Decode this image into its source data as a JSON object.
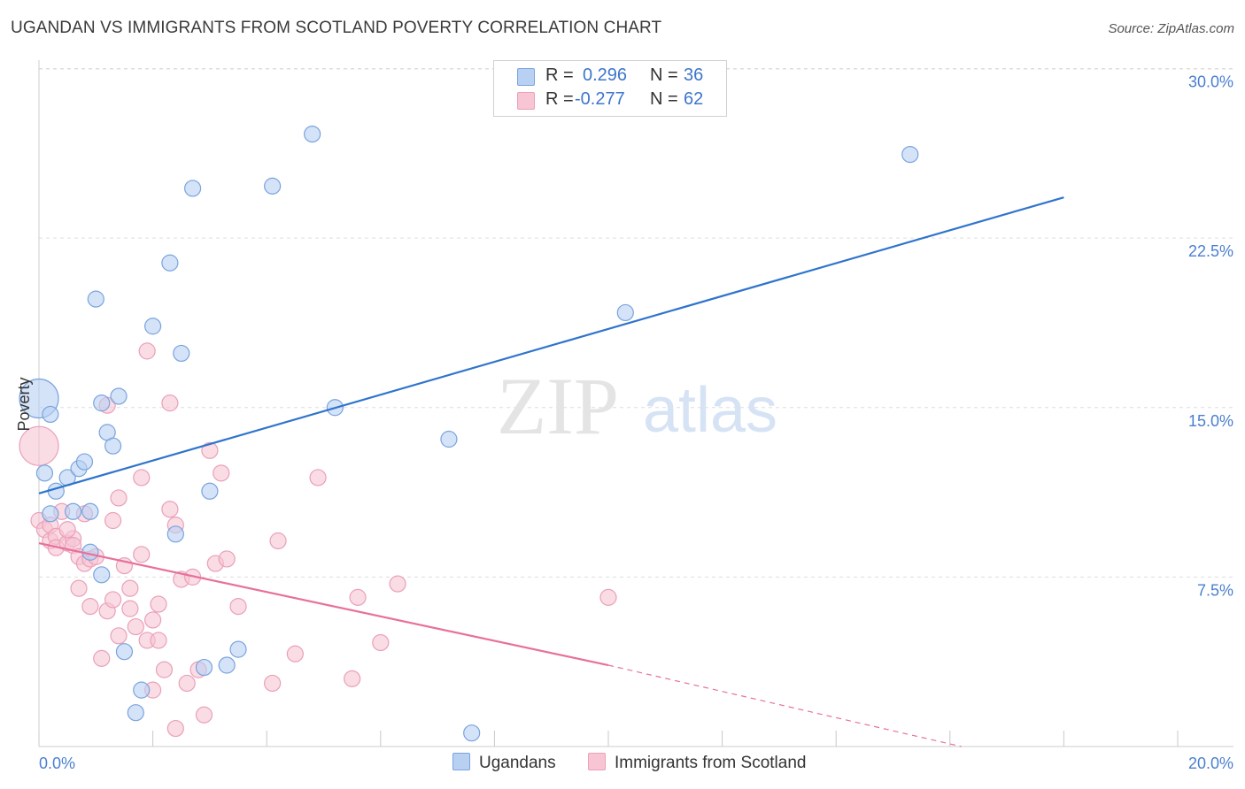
{
  "title": "UGANDAN VS IMMIGRANTS FROM SCOTLAND POVERTY CORRELATION CHART",
  "source": "Source: ZipAtlas.com",
  "watermark": {
    "zip": "ZIP",
    "atlas": "atlas"
  },
  "legend": {
    "rows": [
      {
        "r_label": "R =",
        "r_value": "0.296",
        "n_label": "N =",
        "n_value": "36"
      },
      {
        "r_label": "R =",
        "r_value": "-0.277",
        "n_label": "N =",
        "n_value": "62"
      }
    ]
  },
  "bottom_legend": {
    "series_a": "Ugandans",
    "series_b": "Immigrants from Scotland"
  },
  "colors": {
    "ugandans_fill": "#b8d0f2",
    "ugandans_stroke": "#7aa3de",
    "ugandans_line": "#2f74cc",
    "scotland_fill": "#f7c5d4",
    "scotland_stroke": "#eaa0b8",
    "scotland_line": "#e8709a",
    "grid": "#dddddd",
    "tick_text": "#4a7fd0"
  },
  "chart_data": {
    "type": "scatter",
    "xlabel": "",
    "ylabel": "Poverty",
    "xlim": [
      0,
      20
    ],
    "ylim": [
      0,
      31
    ],
    "x_tick_labels": [
      "0.0%",
      "20.0%"
    ],
    "y_ticks": [
      7.5,
      15.0,
      22.5,
      30.0
    ],
    "y_tick_labels": [
      "7.5%",
      "15.0%",
      "22.5%",
      "30.0%"
    ],
    "grid": true,
    "legend_placement": "top-center",
    "series": [
      {
        "name": "Ugandans",
        "r": 0.296,
        "n": 36,
        "trend": {
          "x": [
            0,
            18.0
          ],
          "y": [
            11.2,
            24.3
          ]
        },
        "points": [
          {
            "x": 0.0,
            "y": 15.4,
            "s": "l"
          },
          {
            "x": 0.1,
            "y": 12.1
          },
          {
            "x": 0.2,
            "y": 14.7
          },
          {
            "x": 0.2,
            "y": 10.3
          },
          {
            "x": 0.3,
            "y": 11.3
          },
          {
            "x": 0.5,
            "y": 11.9
          },
          {
            "x": 0.6,
            "y": 10.4
          },
          {
            "x": 0.7,
            "y": 12.3
          },
          {
            "x": 0.8,
            "y": 12.6
          },
          {
            "x": 0.9,
            "y": 8.6
          },
          {
            "x": 0.9,
            "y": 10.4
          },
          {
            "x": 1.0,
            "y": 19.8
          },
          {
            "x": 1.1,
            "y": 7.6
          },
          {
            "x": 1.1,
            "y": 15.2
          },
          {
            "x": 1.2,
            "y": 13.9
          },
          {
            "x": 1.3,
            "y": 13.3
          },
          {
            "x": 1.4,
            "y": 15.5
          },
          {
            "x": 1.5,
            "y": 4.2
          },
          {
            "x": 1.7,
            "y": 1.5
          },
          {
            "x": 1.8,
            "y": 2.5
          },
          {
            "x": 2.0,
            "y": 18.6
          },
          {
            "x": 2.3,
            "y": 21.4
          },
          {
            "x": 2.4,
            "y": 9.4
          },
          {
            "x": 2.5,
            "y": 17.4
          },
          {
            "x": 2.7,
            "y": 24.7
          },
          {
            "x": 2.9,
            "y": 3.5
          },
          {
            "x": 3.0,
            "y": 11.3
          },
          {
            "x": 3.3,
            "y": 3.6
          },
          {
            "x": 3.5,
            "y": 4.3
          },
          {
            "x": 4.1,
            "y": 24.8
          },
          {
            "x": 4.8,
            "y": 27.1
          },
          {
            "x": 5.2,
            "y": 15.0
          },
          {
            "x": 7.2,
            "y": 13.6
          },
          {
            "x": 7.6,
            "y": 0.6
          },
          {
            "x": 10.3,
            "y": 19.2
          },
          {
            "x": 15.3,
            "y": 26.2
          }
        ]
      },
      {
        "name": "Immigrants from Scotland",
        "r": -0.277,
        "n": 62,
        "trend": {
          "x": [
            0,
            10.0
          ],
          "y": [
            9.0,
            3.6
          ]
        },
        "trend_dashed": {
          "x": [
            10.0,
            16.2
          ],
          "y": [
            3.6,
            0.0
          ]
        },
        "points": [
          {
            "x": 0.0,
            "y": 13.3,
            "s": "l"
          },
          {
            "x": 0.0,
            "y": 10.0
          },
          {
            "x": 0.1,
            "y": 9.6
          },
          {
            "x": 0.2,
            "y": 9.1
          },
          {
            "x": 0.2,
            "y": 9.8
          },
          {
            "x": 0.3,
            "y": 9.3
          },
          {
            "x": 0.3,
            "y": 8.8
          },
          {
            "x": 0.4,
            "y": 10.4
          },
          {
            "x": 0.5,
            "y": 9.0
          },
          {
            "x": 0.6,
            "y": 9.2
          },
          {
            "x": 0.6,
            "y": 8.9
          },
          {
            "x": 0.7,
            "y": 8.4
          },
          {
            "x": 0.7,
            "y": 7.0
          },
          {
            "x": 0.8,
            "y": 10.3
          },
          {
            "x": 0.8,
            "y": 8.1
          },
          {
            "x": 0.9,
            "y": 8.3
          },
          {
            "x": 0.9,
            "y": 6.2
          },
          {
            "x": 1.0,
            "y": 8.4
          },
          {
            "x": 1.1,
            "y": 3.9
          },
          {
            "x": 1.2,
            "y": 15.1
          },
          {
            "x": 1.2,
            "y": 6.0
          },
          {
            "x": 1.3,
            "y": 6.5
          },
          {
            "x": 1.3,
            "y": 10.0
          },
          {
            "x": 1.4,
            "y": 11.0
          },
          {
            "x": 1.4,
            "y": 4.9
          },
          {
            "x": 1.5,
            "y": 8.0
          },
          {
            "x": 1.6,
            "y": 7.0
          },
          {
            "x": 1.6,
            "y": 6.1
          },
          {
            "x": 1.7,
            "y": 5.3
          },
          {
            "x": 1.8,
            "y": 11.9
          },
          {
            "x": 1.8,
            "y": 8.5
          },
          {
            "x": 1.9,
            "y": 17.5
          },
          {
            "x": 1.9,
            "y": 4.7
          },
          {
            "x": 2.0,
            "y": 5.6
          },
          {
            "x": 2.0,
            "y": 2.5
          },
          {
            "x": 2.1,
            "y": 4.7
          },
          {
            "x": 2.1,
            "y": 6.3
          },
          {
            "x": 2.2,
            "y": 3.4
          },
          {
            "x": 2.3,
            "y": 15.2
          },
          {
            "x": 2.3,
            "y": 10.5
          },
          {
            "x": 2.4,
            "y": 9.8
          },
          {
            "x": 2.4,
            "y": 0.8
          },
          {
            "x": 2.5,
            "y": 7.4
          },
          {
            "x": 2.6,
            "y": 2.8
          },
          {
            "x": 2.7,
            "y": 7.5
          },
          {
            "x": 2.8,
            "y": 3.4
          },
          {
            "x": 2.9,
            "y": 1.4
          },
          {
            "x": 3.0,
            "y": 13.1
          },
          {
            "x": 3.1,
            "y": 8.1
          },
          {
            "x": 3.2,
            "y": 12.1
          },
          {
            "x": 3.3,
            "y": 8.3
          },
          {
            "x": 3.5,
            "y": 6.2
          },
          {
            "x": 4.1,
            "y": 2.8
          },
          {
            "x": 4.2,
            "y": 9.1
          },
          {
            "x": 4.5,
            "y": 4.1
          },
          {
            "x": 4.9,
            "y": 11.9
          },
          {
            "x": 5.5,
            "y": 3.0
          },
          {
            "x": 5.6,
            "y": 6.6
          },
          {
            "x": 6.0,
            "y": 4.6
          },
          {
            "x": 10.0,
            "y": 6.6
          },
          {
            "x": 6.3,
            "y": 7.2
          },
          {
            "x": 0.5,
            "y": 9.6
          }
        ]
      }
    ]
  }
}
